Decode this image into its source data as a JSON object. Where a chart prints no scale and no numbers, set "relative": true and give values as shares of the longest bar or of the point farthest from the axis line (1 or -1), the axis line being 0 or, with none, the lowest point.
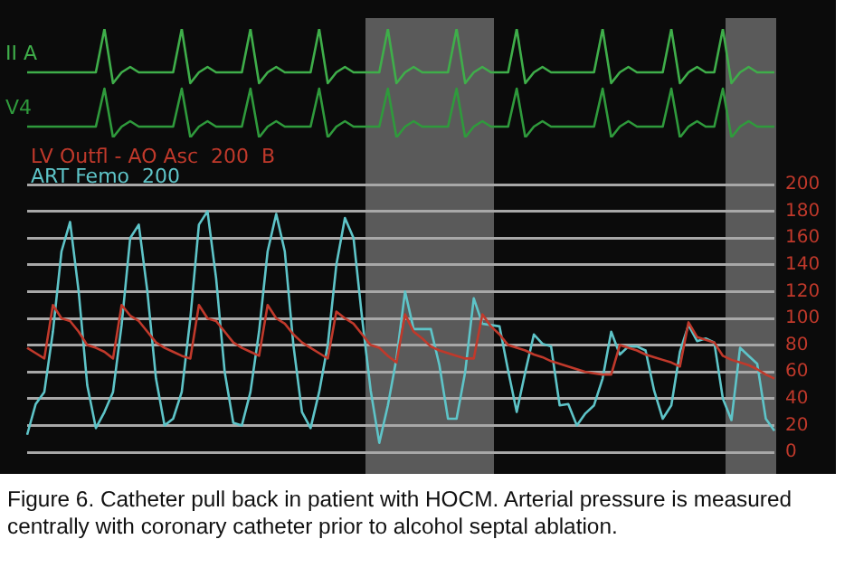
{
  "chart_data": [
    {
      "type": "line",
      "relative": true,
      "tick_labels": false,
      "legend": "left",
      "categories": [
        null,
        null,
        null,
        null,
        null,
        null,
        null,
        null,
        null,
        null,
        null,
        null,
        null,
        null,
        null,
        null,
        null,
        null,
        null,
        null,
        null,
        null,
        null,
        null,
        null,
        null,
        null,
        null,
        null,
        null,
        null,
        null,
        null,
        null,
        null,
        null,
        null,
        null,
        null,
        null,
        null,
        null,
        null,
        null,
        null,
        null,
        null,
        null,
        null,
        null,
        null,
        null,
        null,
        null,
        null,
        null,
        null,
        null,
        null,
        null,
        null,
        null,
        null,
        null,
        null,
        null,
        null,
        null,
        null,
        null,
        null,
        null,
        null,
        null,
        null,
        null,
        null,
        null,
        null,
        null,
        null,
        null,
        null,
        null,
        null,
        null,
        null,
        null
      ],
      "series": [
        {
          "name": "II A",
          "color": "#3fae4a",
          "values": [
            0.6,
            0.6,
            0.6,
            0.6,
            0.6,
            0.6,
            0.6,
            0.6,
            0.6,
            1,
            0.5,
            0.6,
            0.65,
            0.6,
            0.6,
            0.6,
            0.6,
            0.6,
            1,
            0.5,
            0.6,
            0.65,
            0.6,
            0.6,
            0.6,
            0.6,
            1,
            0.5,
            0.6,
            0.65,
            0.6,
            0.6,
            0.6,
            0.6,
            1,
            0.5,
            0.6,
            0.65,
            0.6,
            0.6,
            0.6,
            0.6,
            1,
            0.5,
            0.6,
            0.65,
            0.6,
            0.6,
            0.6,
            0.6,
            1,
            0.5,
            0.6,
            0.65,
            0.6,
            0.6,
            0.6,
            1,
            0.5,
            0.6,
            0.65,
            0.6,
            0.6,
            0.6,
            0.6,
            0.6,
            0.6,
            1,
            0.5,
            0.6,
            0.65,
            0.6,
            0.6,
            0.6,
            0.6,
            1,
            0.5,
            0.6,
            0.65,
            0.6,
            0.6,
            1,
            0.5,
            0.6,
            0.65,
            0.6,
            0.6,
            0.6
          ]
        },
        {
          "name": "V4",
          "color": "#2f9a3c",
          "values": [
            0.1,
            0.1,
            0.1,
            0.1,
            0.1,
            0.1,
            0.1,
            0.1,
            0.1,
            0.45,
            0,
            0.1,
            0.15,
            0.1,
            0.1,
            0.1,
            0.1,
            0.1,
            0.45,
            0,
            0.1,
            0.15,
            0.1,
            0.1,
            0.1,
            0.1,
            0.45,
            0,
            0.1,
            0.15,
            0.1,
            0.1,
            0.1,
            0.1,
            0.45,
            0,
            0.1,
            0.15,
            0.1,
            0.1,
            0.1,
            0.1,
            0.45,
            0,
            0.1,
            0.15,
            0.1,
            0.1,
            0.1,
            0.1,
            0.45,
            0,
            0.1,
            0.15,
            0.1,
            0.1,
            0.1,
            0.45,
            0,
            0.1,
            0.15,
            0.1,
            0.1,
            0.1,
            0.1,
            0.1,
            0.1,
            0.45,
            0,
            0.1,
            0.15,
            0.1,
            0.1,
            0.1,
            0.1,
            0.45,
            0,
            0.1,
            0.15,
            0.1,
            0.1,
            0.45,
            0,
            0.1,
            0.15,
            0.1,
            0.1,
            0.1
          ]
        }
      ]
    },
    {
      "type": "line",
      "tick_labels": "y",
      "grid": "y",
      "legend": "top left",
      "ylim": [
        0,
        200
      ],
      "yticks": [
        0,
        20,
        40,
        60,
        80,
        100,
        120,
        140,
        160,
        180,
        200
      ],
      "categories": [
        null,
        null,
        null,
        null,
        null,
        null,
        null,
        null,
        null,
        null,
        null,
        null,
        null,
        null,
        null,
        null,
        null,
        null,
        null,
        null,
        null,
        null,
        null,
        null,
        null,
        null,
        null,
        null,
        null,
        null,
        null,
        null,
        null,
        null,
        null,
        null,
        null,
        null,
        null,
        null,
        null,
        null,
        null,
        null,
        null,
        null,
        null,
        null,
        null,
        null,
        null,
        null,
        null,
        null,
        null,
        null,
        null,
        null,
        null,
        null,
        null,
        null,
        null,
        null,
        null,
        null,
        null,
        null,
        null,
        null,
        null,
        null,
        null,
        null,
        null,
        null,
        null,
        null,
        null,
        null,
        null,
        null,
        null,
        null,
        null,
        null,
        null,
        null
      ],
      "series": [
        {
          "name": "LV Outfl - AO Asc  200  B",
          "color": "#c0392b",
          "values": [
            78,
            74,
            70,
            110,
            100,
            98,
            90,
            80,
            78,
            75,
            70,
            110,
            102,
            98,
            90,
            82,
            78,
            75,
            72,
            70,
            110,
            100,
            98,
            90,
            82,
            78,
            75,
            72,
            110,
            100,
            96,
            88,
            82,
            78,
            74,
            70,
            105,
            100,
            96,
            88,
            80,
            78,
            72,
            67,
            103,
            90,
            85,
            79,
            76,
            74,
            72,
            70,
            70,
            103,
            94,
            88,
            80,
            78,
            76,
            73,
            71,
            68,
            66,
            64,
            62,
            60,
            59,
            58,
            58,
            80,
            78,
            76,
            73,
            71,
            69,
            67,
            64,
            97,
            86,
            84,
            82,
            72,
            69,
            67,
            65,
            62,
            58,
            55
          ]
        },
        {
          "name": "ART Femo  200",
          "color": "#5ec4c8",
          "values": [
            13,
            36,
            45,
            90,
            150,
            172,
            120,
            50,
            18,
            30,
            45,
            95,
            160,
            170,
            120,
            55,
            20,
            25,
            45,
            100,
            170,
            180,
            130,
            60,
            22,
            20,
            45,
            90,
            150,
            178,
            150,
            80,
            30,
            18,
            45,
            80,
            140,
            175,
            160,
            100,
            46,
            7,
            35,
            70,
            120,
            92,
            92,
            92,
            65,
            25,
            25,
            60,
            115,
            96,
            95,
            94,
            61,
            30,
            60,
            88,
            81,
            79,
            35,
            36,
            20,
            29,
            35,
            55,
            90,
            73,
            79,
            79,
            76,
            46,
            25,
            35,
            75,
            95,
            83,
            85,
            82,
            40,
            24,
            78,
            72,
            66,
            25,
            16
          ]
        }
      ],
      "annotations": [
        "Figure 6. Catheter pull back in patient with HOCM. Arterial pressure is measured centrally with coronary catheter prior to alcohol septal ablation."
      ]
    }
  ]
}
